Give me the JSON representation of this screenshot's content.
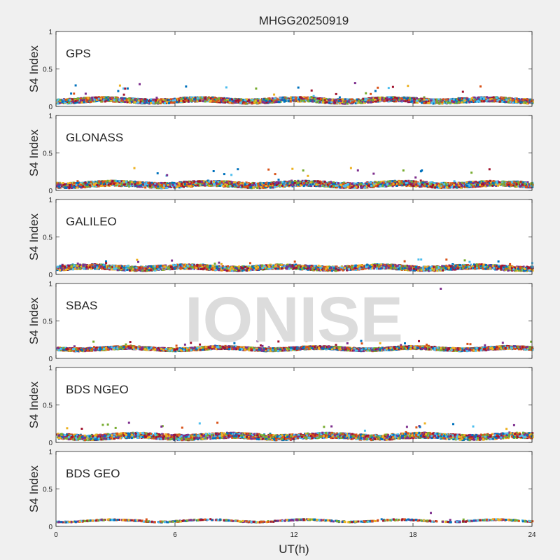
{
  "figure_title": "MHGG20250919",
  "watermark": "IONISE",
  "series_colors": [
    "#0072BD",
    "#D95319",
    "#EDB120",
    "#7E2F8E",
    "#77AC30",
    "#4DBEEE",
    "#A2142F"
  ],
  "chart_data": [
    {
      "type": "scatter",
      "title": "GPS",
      "ylabel": "S4 Index",
      "ylim": [
        0,
        1
      ],
      "yticks": [
        0,
        0.5,
        1
      ],
      "ytick_labels": [
        "0",
        "0.5",
        "1"
      ],
      "xlim": [
        0,
        24
      ],
      "baseline": 0.08,
      "spread": 0.03,
      "spike_max": 0.32,
      "density": 3200,
      "seed": 11
    },
    {
      "type": "scatter",
      "title": "GLONASS",
      "ylabel": "S4 Index",
      "ylim": [
        0,
        1
      ],
      "yticks": [
        0,
        0.5,
        1
      ],
      "ytick_labels": [
        "0",
        "0.5",
        "1"
      ],
      "xlim": [
        0,
        24
      ],
      "baseline": 0.08,
      "spread": 0.035,
      "spike_max": 0.3,
      "density": 3200,
      "seed": 23
    },
    {
      "type": "scatter",
      "title": "GALILEO",
      "ylabel": "S4 Index",
      "ylim": [
        0,
        1
      ],
      "yticks": [
        0,
        0.5,
        1
      ],
      "ytick_labels": [
        "0",
        "0.5",
        "1"
      ],
      "xlim": [
        0,
        24
      ],
      "baseline": 0.09,
      "spread": 0.03,
      "spike_max": 0.2,
      "density": 3000,
      "seed": 37
    },
    {
      "type": "scatter",
      "title": "SBAS",
      "ylabel": "S4 Index",
      "ylim": [
        0,
        1
      ],
      "yticks": [
        0,
        0.5,
        1
      ],
      "ytick_labels": [
        "0",
        "0.5",
        "1"
      ],
      "xlim": [
        0,
        24
      ],
      "baseline": 0.13,
      "spread": 0.02,
      "spike_max": 0.24,
      "density": 3400,
      "seed": 41,
      "outliers": [
        {
          "x": 19.4,
          "y": 0.93
        }
      ]
    },
    {
      "type": "scatter",
      "title": "BDS NGEO",
      "ylabel": "S4 Index",
      "ylim": [
        0,
        1
      ],
      "yticks": [
        0,
        0.5,
        1
      ],
      "ytick_labels": [
        "0",
        "0.5",
        "1"
      ],
      "xlim": [
        0,
        24
      ],
      "baseline": 0.08,
      "spread": 0.035,
      "spike_max": 0.27,
      "density": 3200,
      "seed": 53
    },
    {
      "type": "scatter",
      "title": "BDS GEO",
      "ylabel": "S4 Index",
      "ylim": [
        0,
        1
      ],
      "yticks": [
        0,
        0.5,
        1
      ],
      "ytick_labels": [
        "0",
        "0.5",
        "1"
      ],
      "xlim": [
        0,
        24
      ],
      "baseline": 0.075,
      "spread": 0.006,
      "spike_max": 0.1,
      "density": 700,
      "seed": 67,
      "outliers": [
        {
          "x": 18.9,
          "y": 0.18
        }
      ]
    }
  ],
  "x_axis": {
    "label": "UT(h)",
    "ticks": [
      0,
      6,
      12,
      18,
      24
    ],
    "tick_labels": [
      "0",
      "6",
      "12",
      "18",
      "24"
    ]
  }
}
